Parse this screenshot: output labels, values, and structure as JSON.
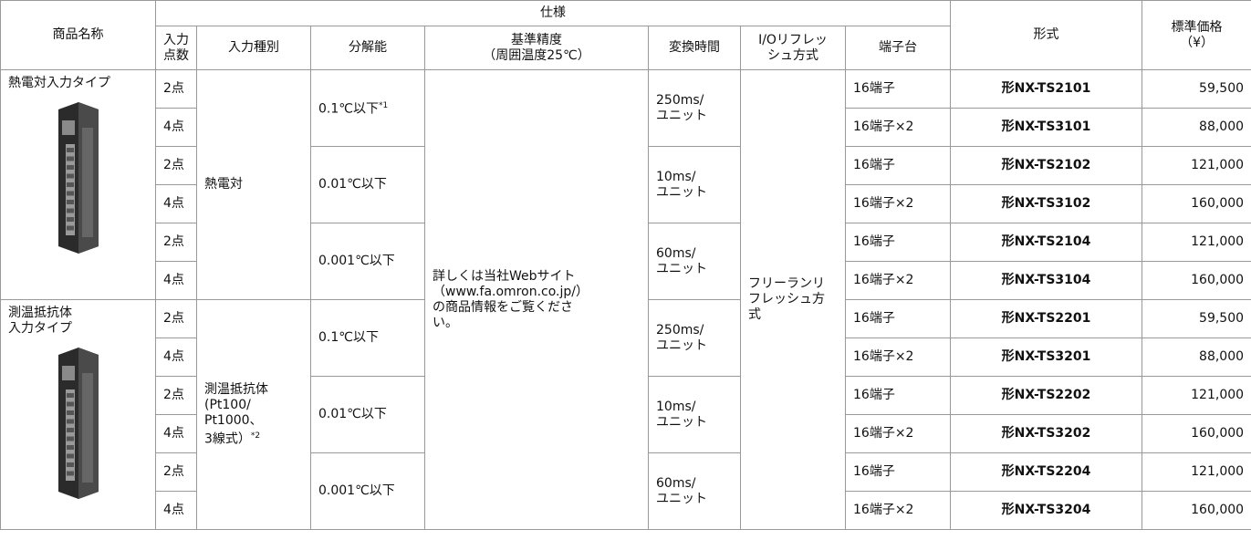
{
  "header": {
    "product_name": "商品名称",
    "spec": "仕様",
    "input_points": "入力\n点数",
    "input_type": "入力種別",
    "resolution": "分解能",
    "accuracy": "基準精度\n（周囲温度25℃）",
    "conversion_time": "変換時間",
    "io_refresh": "I/Oリフレッ\nシュ方式",
    "terminal": "端子台",
    "model": "形式",
    "price": "標準価格\n（¥）"
  },
  "accuracy": "詳しくは当社Webサイト\n（www.fa.omron.co.jp/）\nの商品情報をご覧くださ\nい。",
  "io_refresh": "フリーランリ\nフレッシュ方\n式",
  "groups": [
    {
      "product": "熱電対入力タイプ",
      "input_type": "熱電対",
      "resolutions": [
        {
          "text": "0.1℃以下",
          "note": "*1",
          "conversion_time": "250ms/\nユニット"
        },
        {
          "text": "0.01℃以下",
          "conversion_time": "10ms/\nユニット"
        },
        {
          "text": "0.001℃以下",
          "conversion_time": "60ms/\nユニット"
        }
      ],
      "rows": [
        {
          "points": "2点",
          "terminal": "16端子",
          "model": "形NX-TS2101",
          "price": "59,500"
        },
        {
          "points": "4点",
          "terminal": "16端子×2",
          "model": "形NX-TS3101",
          "price": "88,000"
        },
        {
          "points": "2点",
          "terminal": "16端子",
          "model": "形NX-TS2102",
          "price": "121,000"
        },
        {
          "points": "4点",
          "terminal": "16端子×2",
          "model": "形NX-TS3102",
          "price": "160,000"
        },
        {
          "points": "2点",
          "terminal": "16端子",
          "model": "形NX-TS2104",
          "price": "121,000"
        },
        {
          "points": "4点",
          "terminal": "16端子×2",
          "model": "形NX-TS3104",
          "price": "160,000"
        }
      ]
    },
    {
      "product": "測温抵抗体\n入力タイプ",
      "input_type": "測温抵抗体\n(Pt100/\nPt1000、\n3線式）",
      "input_type_note": "*2",
      "resolutions": [
        {
          "text": "0.1℃以下",
          "conversion_time": "250ms/\nユニット"
        },
        {
          "text": "0.01℃以下",
          "conversion_time": "10ms/\nユニット"
        },
        {
          "text": "0.001℃以下",
          "conversion_time": "60ms/\nユニット"
        }
      ],
      "rows": [
        {
          "points": "2点",
          "terminal": "16端子",
          "model": "形NX-TS2201",
          "price": "59,500"
        },
        {
          "points": "4点",
          "terminal": "16端子×2",
          "model": "形NX-TS3201",
          "price": "88,000"
        },
        {
          "points": "2点",
          "terminal": "16端子",
          "model": "形NX-TS2202",
          "price": "121,000"
        },
        {
          "points": "4点",
          "terminal": "16端子×2",
          "model": "形NX-TS3202",
          "price": "160,000"
        },
        {
          "points": "2点",
          "terminal": "16端子",
          "model": "形NX-TS2204",
          "price": "121,000"
        },
        {
          "points": "4点",
          "terminal": "16端子×2",
          "model": "形NX-TS3204",
          "price": "160,000"
        }
      ]
    }
  ]
}
